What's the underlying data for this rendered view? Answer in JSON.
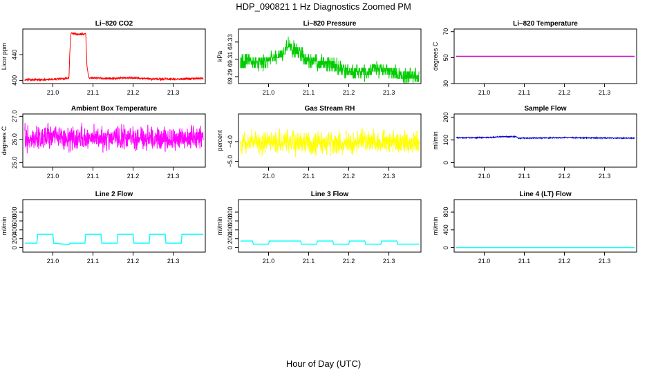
{
  "figure": {
    "title": "HDP_090821  1 Hz Diagnostics Zoomed PM",
    "xlabel": "Hour of Day (UTC)"
  },
  "chart_data": [
    {
      "id": "co2",
      "type": "line",
      "title": "Li–820 CO2",
      "ylabel": "Licor ppm",
      "color": "#ff0000",
      "xlim": [
        20.925,
        21.38
      ],
      "ylim": [
        395,
        480
      ],
      "xticks": [
        21.0,
        21.1,
        21.2,
        21.3
      ],
      "xtick_labels": [
        "21.0",
        "21.1",
        "21.2",
        "21.3"
      ],
      "yticks": [
        400,
        440
      ],
      "ytick_labels": [
        "400",
        "440"
      ],
      "series": [
        {
          "name": "CO2",
          "x": [
            20.93,
            20.98,
            21.03,
            21.04,
            21.042,
            21.045,
            21.06,
            21.082,
            21.085,
            21.09,
            21.15,
            21.2,
            21.25,
            21.3,
            21.375
          ],
          "y": [
            401,
            401,
            403,
            404,
            440,
            473,
            472,
            472,
            420,
            404,
            403,
            404,
            402,
            402,
            403
          ]
        }
      ],
      "noise": 1.2
    },
    {
      "id": "pressure",
      "type": "line",
      "title": "Li–820 Pressure",
      "ylabel": "kPa",
      "color": "#00cc00",
      "xlim": [
        20.925,
        21.38
      ],
      "ylim": [
        69.282,
        69.345
      ],
      "xticks": [
        21.0,
        21.1,
        21.2,
        21.3
      ],
      "xtick_labels": [
        "21.0",
        "21.1",
        "21.2",
        "21.3"
      ],
      "yticks": [
        69.29,
        69.31,
        69.33
      ],
      "ytick_labels": [
        "69.29",
        "69.31",
        "69.33"
      ],
      "series": [
        {
          "name": "Pressure",
          "x": [
            20.93,
            20.95,
            20.98,
            21.0,
            21.03,
            21.05,
            21.07,
            21.09,
            21.12,
            21.15,
            21.18,
            21.21,
            21.25,
            21.28,
            21.31,
            21.34,
            21.375
          ],
          "y": [
            69.305,
            69.31,
            69.305,
            69.31,
            69.315,
            69.325,
            69.32,
            69.31,
            69.305,
            69.305,
            69.3,
            69.295,
            69.295,
            69.3,
            69.295,
            69.29,
            69.29
          ]
        }
      ],
      "noise": 0.006,
      "quantize": 0.004
    },
    {
      "id": "licor-temp",
      "type": "line",
      "title": "Li–820 Temperature",
      "ylabel": "degrees C",
      "color": "#cc00cc",
      "xlim": [
        20.925,
        21.38
      ],
      "ylim": [
        30,
        72
      ],
      "xticks": [
        21.0,
        21.1,
        21.2,
        21.3
      ],
      "xtick_labels": [
        "21.0",
        "21.1",
        "21.2",
        "21.3"
      ],
      "yticks": [
        30,
        50,
        70
      ],
      "ytick_labels": [
        "30",
        "50",
        "70"
      ],
      "series": [
        {
          "name": "Temperature",
          "x": [
            20.93,
            21.375
          ],
          "y": [
            51,
            51
          ]
        }
      ],
      "noise": 0
    },
    {
      "id": "ambient-temp",
      "type": "line",
      "title": "Ambient Box Temperature",
      "ylabel": "degrees C",
      "color": "#ff00ff",
      "xlim": [
        20.925,
        21.38
      ],
      "ylim": [
        24.8,
        27.1
      ],
      "xticks": [
        21.0,
        21.1,
        21.2,
        21.3
      ],
      "xtick_labels": [
        "21.0",
        "21.1",
        "21.2",
        "21.3"
      ],
      "yticks": [
        25.0,
        26.0,
        27.0
      ],
      "ytick_labels": [
        "25.0",
        "26.0",
        "27.0"
      ],
      "series": [
        {
          "name": "Ambient",
          "x": [
            20.93,
            21.375
          ],
          "y": [
            26.05,
            26.05
          ]
        }
      ],
      "noise": 0.35
    },
    {
      "id": "gas-rh",
      "type": "line",
      "title": "Gas Stream RH",
      "ylabel": "percent",
      "color": "#ffff00",
      "xlim": [
        20.925,
        21.38
      ],
      "ylim": [
        -5.3,
        -2.6
      ],
      "xticks": [
        21.0,
        21.1,
        21.2,
        21.3
      ],
      "xtick_labels": [
        "21.0",
        "21.1",
        "21.2",
        "21.3"
      ],
      "yticks": [
        -5.0,
        -4.0
      ],
      "ytick_labels": [
        "−5.0",
        "−4.0"
      ],
      "series": [
        {
          "name": "RH",
          "x": [
            20.93,
            21.375
          ],
          "y": [
            -4.05,
            -4.05
          ]
        }
      ],
      "noise": 0.4
    },
    {
      "id": "sample-flow",
      "type": "line",
      "title": "Sample Flow",
      "ylabel": "ml/min",
      "color": "#0000cc",
      "xlim": [
        20.925,
        21.38
      ],
      "ylim": [
        -20,
        215
      ],
      "xticks": [
        21.0,
        21.1,
        21.2,
        21.3
      ],
      "xtick_labels": [
        "21.0",
        "21.1",
        "21.2",
        "21.3"
      ],
      "yticks": [
        0,
        100,
        200
      ],
      "ytick_labels": [
        "0",
        "100",
        "200"
      ],
      "series": [
        {
          "name": "Sample",
          "x": [
            20.93,
            21.0,
            21.05,
            21.08,
            21.085,
            21.2,
            21.375
          ],
          "y": [
            110,
            110,
            115,
            115,
            108,
            110,
            108
          ]
        }
      ],
      "noise": 1.5
    },
    {
      "id": "line2-flow",
      "type": "line",
      "title": "Line 2 Flow",
      "ylabel": "ml/min",
      "color": "#00ffff",
      "xlim": [
        20.925,
        21.38
      ],
      "ylim": [
        -100,
        1080
      ],
      "xticks": [
        21.0,
        21.1,
        21.2,
        21.3
      ],
      "xtick_labels": [
        "21.0",
        "21.1",
        "21.2",
        "21.3"
      ],
      "yticks": [
        0,
        200,
        400,
        600,
        800
      ],
      "ytick_labels": [
        "0",
        "200",
        "400",
        "600",
        "800"
      ],
      "series": [
        {
          "name": "Line 2",
          "x": [
            20.93,
            20.96,
            20.962,
            21.0,
            21.002,
            21.04,
            21.042,
            21.08,
            21.082,
            21.12,
            21.122,
            21.16,
            21.162,
            21.2,
            21.202,
            21.24,
            21.242,
            21.28,
            21.282,
            21.32,
            21.322,
            21.375
          ],
          "y": [
            100,
            100,
            300,
            300,
            100,
            70,
            100,
            100,
            300,
            300,
            100,
            100,
            300,
            300,
            100,
            100,
            300,
            300,
            100,
            100,
            300,
            300
          ]
        }
      ],
      "noise": 0,
      "step": true
    },
    {
      "id": "line3-flow",
      "type": "line",
      "title": "Line 3 Flow",
      "ylabel": "ml/min",
      "color": "#00ffff",
      "xlim": [
        20.925,
        21.38
      ],
      "ylim": [
        -100,
        1080
      ],
      "xticks": [
        21.0,
        21.1,
        21.2,
        21.3
      ],
      "xtick_labels": [
        "21.0",
        "21.1",
        "21.2",
        "21.3"
      ],
      "yticks": [
        0,
        200,
        400,
        600,
        800
      ],
      "ytick_labels": [
        "0",
        "200",
        "400",
        "600",
        "800"
      ],
      "series": [
        {
          "name": "Line 3",
          "x": [
            20.93,
            20.96,
            20.962,
            21.0,
            21.002,
            21.08,
            21.082,
            21.12,
            21.122,
            21.16,
            21.162,
            21.2,
            21.202,
            21.24,
            21.242,
            21.28,
            21.282,
            21.32,
            21.322,
            21.375
          ],
          "y": [
            150,
            150,
            80,
            80,
            150,
            150,
            80,
            80,
            150,
            150,
            80,
            80,
            150,
            150,
            80,
            80,
            150,
            150,
            80,
            80
          ]
        }
      ],
      "noise": 0,
      "step": true
    },
    {
      "id": "line4-flow",
      "type": "line",
      "title": "Line 4 (LT) Flow",
      "ylabel": "ml/min",
      "color": "#00ffff",
      "xlim": [
        20.925,
        21.38
      ],
      "ylim": [
        -100,
        1080
      ],
      "xticks": [
        21.0,
        21.1,
        21.2,
        21.3
      ],
      "xtick_labels": [
        "21.0",
        "21.1",
        "21.2",
        "21.3"
      ],
      "yticks": [
        0,
        400,
        800
      ],
      "ytick_labels": [
        "0",
        "400",
        "800"
      ],
      "series": [
        {
          "name": "Line 4",
          "x": [
            20.93,
            21.375
          ],
          "y": [
            0,
            0
          ]
        }
      ],
      "noise": 0
    }
  ]
}
